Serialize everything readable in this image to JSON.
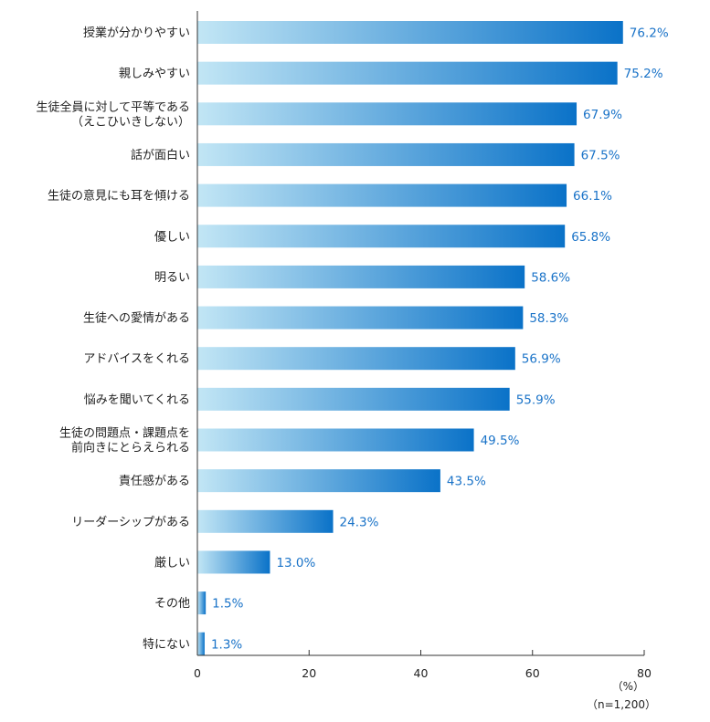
{
  "chart_data": {
    "type": "bar",
    "orientation": "horizontal",
    "categories": [
      "授業が分かりやすい",
      "親しみやすい",
      "生徒全員に対して平等である\n（えこひいきしない）",
      "話が面白い",
      "生徒の意見にも耳を傾ける",
      "優しい",
      "明るい",
      "生徒への愛情がある",
      "アドバイスをくれる",
      "悩みを聞いてくれる",
      "生徒の問題点・課題点を\n前向きにとらえられる",
      "責任感がある",
      "リーダーシップがある",
      "厳しい",
      "その他",
      "特にない"
    ],
    "values": [
      76.2,
      75.2,
      67.9,
      67.5,
      66.1,
      65.8,
      58.6,
      58.3,
      56.9,
      55.9,
      49.5,
      43.5,
      24.3,
      13.0,
      1.5,
      1.3
    ],
    "value_labels": [
      "76.2%",
      "75.2%",
      "67.9%",
      "67.5%",
      "66.1%",
      "65.8%",
      "58.6%",
      "58.3%",
      "56.9%",
      "55.9%",
      "49.5%",
      "43.5%",
      "24.3%",
      "13.0%",
      "1.5%",
      "1.3%"
    ],
    "xlim": [
      0,
      80
    ],
    "xticks": [
      0,
      20,
      40,
      60,
      80
    ],
    "unit_label": "（%）",
    "sample_label": "（n=1,200）",
    "grid": false,
    "colors": {
      "bar_start": "#c2e6f5",
      "bar_end": "#0a72c8",
      "value_text": "#1a73c8",
      "axis": "#333333"
    }
  }
}
